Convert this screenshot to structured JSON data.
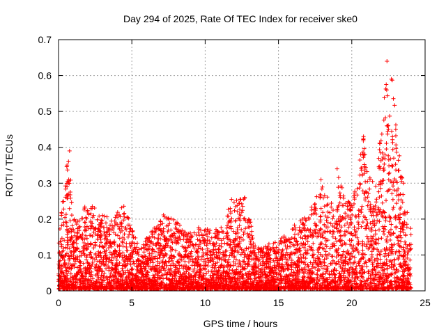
{
  "chart_data": {
    "type": "scatter",
    "title": "Day 294 of 2025, Rate Of TEC Index for receiver ske0",
    "xlabel": "GPS time / hours",
    "ylabel": "ROTI / TECUs",
    "xlim": [
      0,
      25
    ],
    "ylim": [
      0,
      0.7
    ],
    "x_ticks": [
      "0",
      "5",
      "10",
      "15",
      "20",
      "25"
    ],
    "y_ticks": [
      "0",
      "0.1",
      "0.2",
      "0.3",
      "0.4",
      "0.5",
      "0.6",
      "0.7"
    ],
    "grid": true,
    "marker": "+",
    "marker_color": "#ff0000",
    "envelope_hint": [
      {
        "x": 0.0,
        "y": 0.12
      },
      {
        "x": 0.3,
        "y": 0.3
      },
      {
        "x": 0.7,
        "y": 0.39
      },
      {
        "x": 1.0,
        "y": 0.2
      },
      {
        "x": 1.5,
        "y": 0.2
      },
      {
        "x": 1.8,
        "y": 0.25
      },
      {
        "x": 2.5,
        "y": 0.24
      },
      {
        "x": 3.5,
        "y": 0.2
      },
      {
        "x": 4.5,
        "y": 0.24
      },
      {
        "x": 5.5,
        "y": 0.12
      },
      {
        "x": 7.5,
        "y": 0.23
      },
      {
        "x": 8.5,
        "y": 0.17
      },
      {
        "x": 10.0,
        "y": 0.18
      },
      {
        "x": 11.0,
        "y": 0.17
      },
      {
        "x": 11.8,
        "y": 0.25
      },
      {
        "x": 12.7,
        "y": 0.26
      },
      {
        "x": 13.5,
        "y": 0.12
      },
      {
        "x": 15.0,
        "y": 0.14
      },
      {
        "x": 16.5,
        "y": 0.2
      },
      {
        "x": 17.5,
        "y": 0.25
      },
      {
        "x": 18.0,
        "y": 0.31
      },
      {
        "x": 18.5,
        "y": 0.24
      },
      {
        "x": 19.0,
        "y": 0.33
      },
      {
        "x": 19.5,
        "y": 0.27
      },
      {
        "x": 20.0,
        "y": 0.24
      },
      {
        "x": 20.8,
        "y": 0.43
      },
      {
        "x": 21.5,
        "y": 0.29
      },
      {
        "x": 22.0,
        "y": 0.45
      },
      {
        "x": 22.4,
        "y": 0.64
      },
      {
        "x": 22.8,
        "y": 0.59
      },
      {
        "x": 23.3,
        "y": 0.36
      },
      {
        "x": 24.0,
        "y": 0.18
      }
    ],
    "outliers": [
      {
        "x": 22.4,
        "y": 0.64
      },
      {
        "x": 22.7,
        "y": 0.59
      },
      {
        "x": 22.35,
        "y": 0.575
      },
      {
        "x": 22.4,
        "y": 0.46
      },
      {
        "x": 22.5,
        "y": 0.45
      },
      {
        "x": 20.8,
        "y": 0.43
      },
      {
        "x": 0.75,
        "y": 0.39
      },
      {
        "x": 20.9,
        "y": 0.38
      },
      {
        "x": 11.8,
        "y": 0.255
      },
      {
        "x": 12.7,
        "y": 0.26
      },
      {
        "x": 19.0,
        "y": 0.34
      },
      {
        "x": 17.9,
        "y": 0.31
      }
    ]
  }
}
